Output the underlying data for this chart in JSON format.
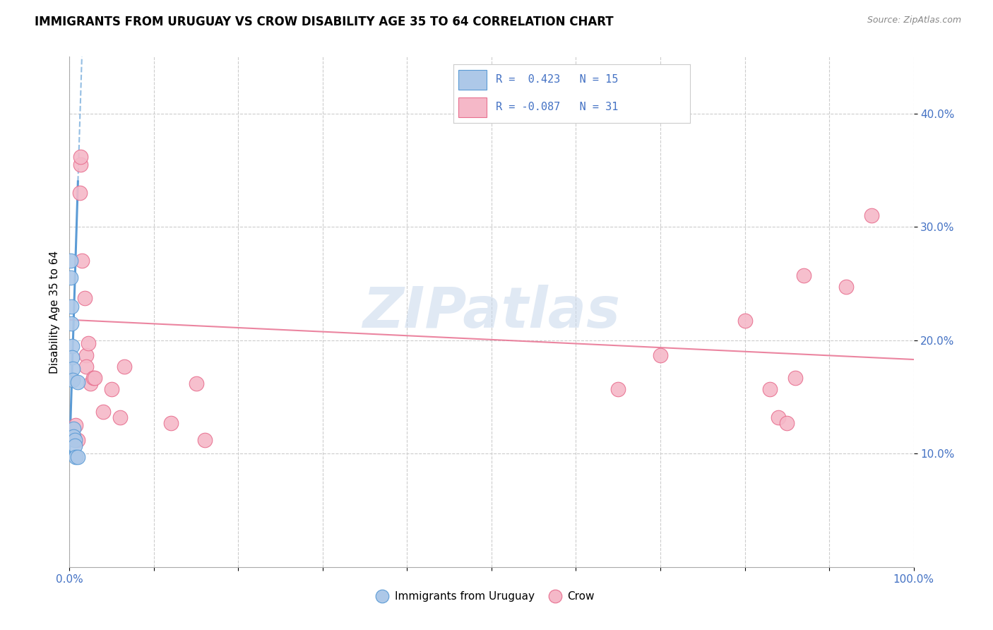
{
  "title": "IMMIGRANTS FROM URUGUAY VS CROW DISABILITY AGE 35 TO 64 CORRELATION CHART",
  "source": "Source: ZipAtlas.com",
  "ylabel": "Disability Age 35 to 64",
  "xlim": [
    0,
    1.0
  ],
  "ylim": [
    0,
    0.45
  ],
  "xticks": [
    0.0,
    0.1,
    0.2,
    0.3,
    0.4,
    0.5,
    0.6,
    0.7,
    0.8,
    0.9,
    1.0
  ],
  "xticklabels": [
    "0.0%",
    "",
    "",
    "",
    "",
    "",
    "",
    "",
    "",
    "",
    "100.0%"
  ],
  "ytick_positions": [
    0.1,
    0.2,
    0.3,
    0.4
  ],
  "ytick_labels": [
    "10.0%",
    "20.0%",
    "30.0%",
    "40.0%"
  ],
  "legend_r1": "R =  0.423",
  "legend_n1": "N = 15",
  "legend_r2": "R = -0.087",
  "legend_n2": "N = 31",
  "color_blue": "#adc8e8",
  "color_pink": "#f5b8c8",
  "line_blue": "#5b9bd5",
  "line_pink": "#e87090",
  "text_blue": "#4472c4",
  "grid_color": "#cccccc",
  "watermark": "ZIPatlas",
  "blue_points": [
    [
      0.001,
      0.27
    ],
    [
      0.001,
      0.255
    ],
    [
      0.002,
      0.23
    ],
    [
      0.002,
      0.215
    ],
    [
      0.003,
      0.195
    ],
    [
      0.003,
      0.185
    ],
    [
      0.004,
      0.175
    ],
    [
      0.004,
      0.165
    ],
    [
      0.005,
      0.122
    ],
    [
      0.005,
      0.115
    ],
    [
      0.006,
      0.112
    ],
    [
      0.006,
      0.107
    ],
    [
      0.007,
      0.097
    ],
    [
      0.01,
      0.163
    ],
    [
      0.01,
      0.097
    ]
  ],
  "pink_points": [
    [
      0.005,
      0.115
    ],
    [
      0.007,
      0.125
    ],
    [
      0.01,
      0.112
    ],
    [
      0.012,
      0.33
    ],
    [
      0.013,
      0.355
    ],
    [
      0.013,
      0.362
    ],
    [
      0.015,
      0.27
    ],
    [
      0.018,
      0.237
    ],
    [
      0.02,
      0.187
    ],
    [
      0.02,
      0.177
    ],
    [
      0.022,
      0.197
    ],
    [
      0.025,
      0.162
    ],
    [
      0.028,
      0.167
    ],
    [
      0.03,
      0.167
    ],
    [
      0.04,
      0.137
    ],
    [
      0.05,
      0.157
    ],
    [
      0.06,
      0.132
    ],
    [
      0.065,
      0.177
    ],
    [
      0.12,
      0.127
    ],
    [
      0.15,
      0.162
    ],
    [
      0.16,
      0.112
    ],
    [
      0.65,
      0.157
    ],
    [
      0.7,
      0.187
    ],
    [
      0.8,
      0.217
    ],
    [
      0.83,
      0.157
    ],
    [
      0.84,
      0.132
    ],
    [
      0.85,
      0.127
    ],
    [
      0.86,
      0.167
    ],
    [
      0.87,
      0.257
    ],
    [
      0.92,
      0.247
    ],
    [
      0.95,
      0.31
    ]
  ],
  "blue_trendline_solid": [
    [
      0.0,
      0.1
    ],
    [
      0.01,
      0.34
    ]
  ],
  "blue_trendline_dashed": [
    [
      0.01,
      0.34
    ],
    [
      0.018,
      0.53
    ]
  ],
  "pink_trendline": [
    [
      0.0,
      0.218
    ],
    [
      1.0,
      0.183
    ]
  ]
}
